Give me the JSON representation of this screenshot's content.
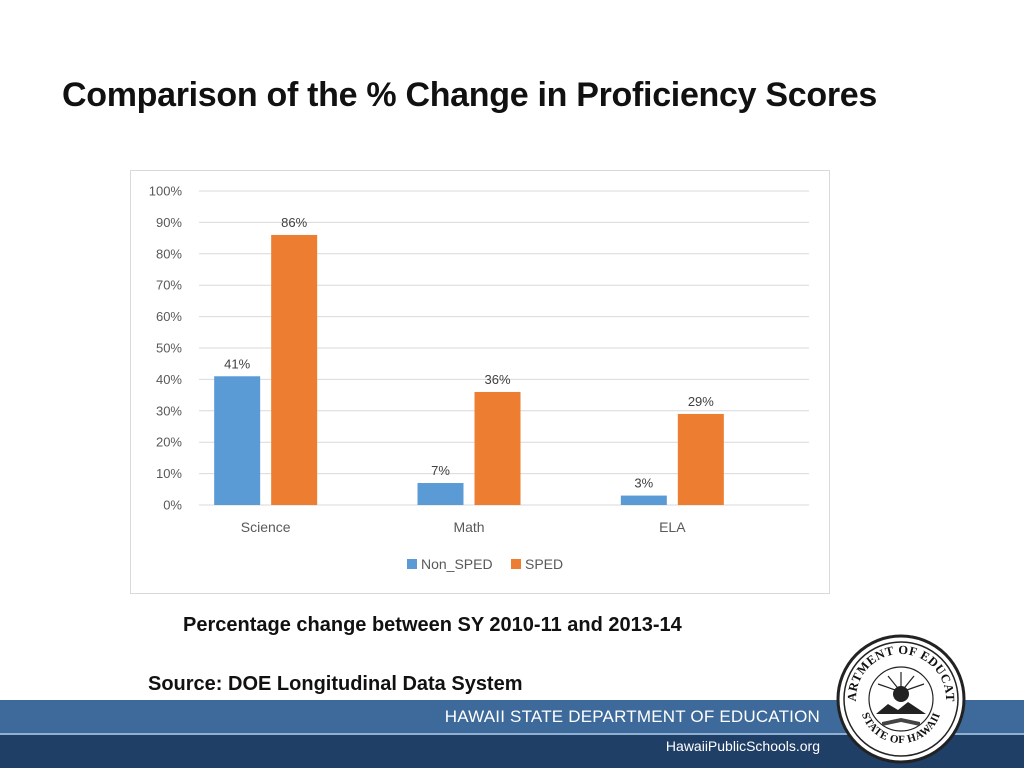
{
  "slide": {
    "title": "Comparison of the % Change in Proficiency Scores",
    "caption": "Percentage change between SY 2010-11 and 2013-14",
    "source": "Source:  DOE Longitudinal Data System"
  },
  "footer": {
    "department": "HAWAII STATE DEPARTMENT OF EDUCATION",
    "website": "HawaiiPublicSchools.org",
    "seal_text_top": "DEPARTMENT OF EDUCATION",
    "seal_text_bottom": "STATE OF HAWAII"
  },
  "colors": {
    "non_sped": "#5b9bd5",
    "sped": "#ed7d31",
    "footer_blue": "#2c5580"
  },
  "chart_data": {
    "type": "bar",
    "title": "",
    "xlabel": "",
    "ylabel": "",
    "categories": [
      "Science",
      "Math",
      "ELA"
    ],
    "series": [
      {
        "name": "Non_SPED",
        "values": [
          41,
          7,
          3
        ],
        "labels": [
          "41%",
          "7%",
          "3%"
        ]
      },
      {
        "name": "SPED",
        "values": [
          86,
          36,
          29
        ],
        "labels": [
          "86%",
          "36%",
          "29%"
        ]
      }
    ],
    "ylim": [
      0,
      100
    ],
    "yticks": [
      "0%",
      "10%",
      "20%",
      "30%",
      "40%",
      "50%",
      "60%",
      "70%",
      "80%",
      "90%",
      "100%"
    ],
    "grid": true,
    "legend_position": "bottom"
  }
}
